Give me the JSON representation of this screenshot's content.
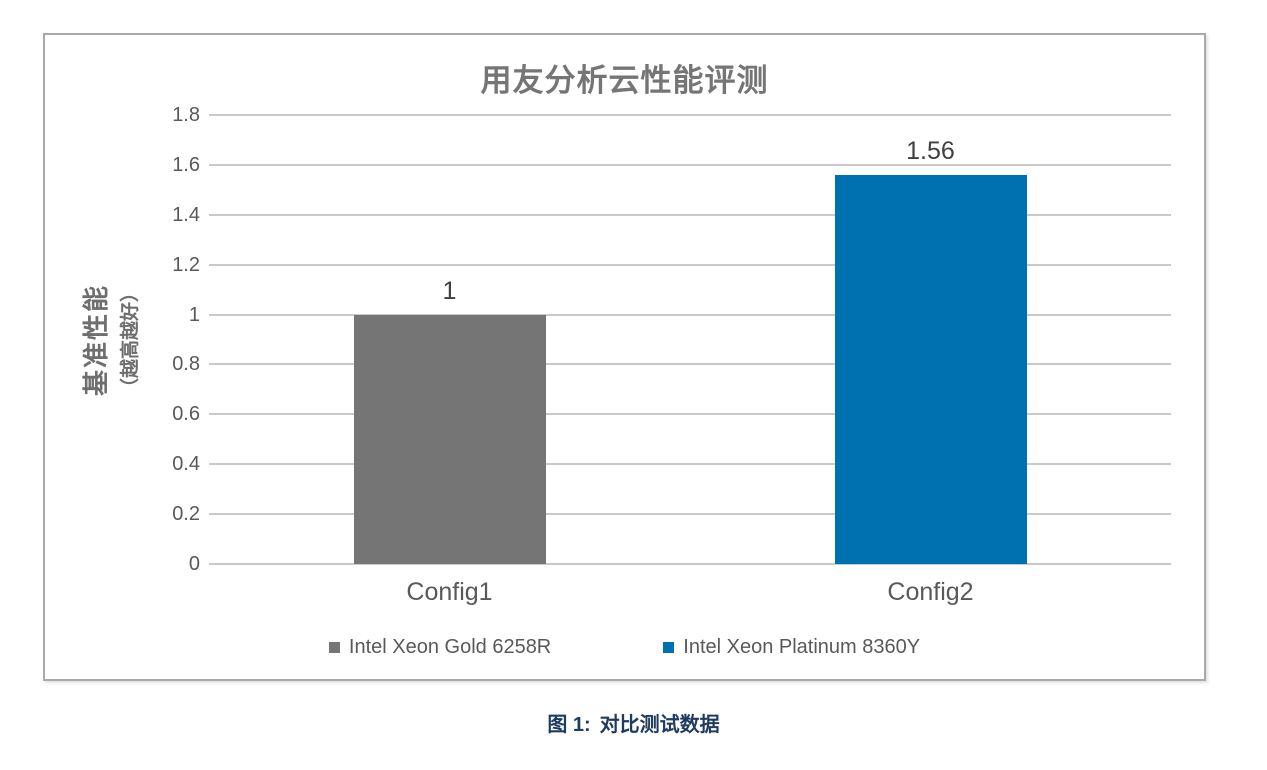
{
  "chart_data": {
    "type": "bar",
    "title": "用友分析云性能评测",
    "xlabel": "",
    "ylabel": "基准性能（越高越好）",
    "ylabel_main": "基准性能",
    "ylabel_sub": "（越高越好）",
    "categories": [
      "Config1",
      "Config2"
    ],
    "values": [
      1,
      1.56
    ],
    "value_labels": [
      "1",
      "1.56"
    ],
    "bar_colors": [
      "#757575",
      "#0071b0"
    ],
    "ylim": [
      0,
      1.8
    ],
    "ytick_labels": [
      "0",
      "0.2",
      "0.4",
      "0.6",
      "0.8",
      "1",
      "1.2",
      "1.4",
      "1.6",
      "1.8"
    ],
    "grid": true,
    "legend_position": "bottom",
    "legend": [
      {
        "label": "Intel Xeon Gold 6258R",
        "color": "#757575"
      },
      {
        "label": "Intel Xeon Platinum 8360Y",
        "color": "#0071b0"
      }
    ]
  },
  "caption": {
    "prefix": "图 1:",
    "text": "对比测试数据"
  },
  "colors": {
    "title": "#757575",
    "axis_text": "#595959",
    "y_axis_label": "#6e6e6e",
    "gridline": "#c9c9c9",
    "value_label": "#404040",
    "frame_border": "#a9a9a9",
    "caption": "#1f3c60",
    "background": "#ffffff"
  }
}
